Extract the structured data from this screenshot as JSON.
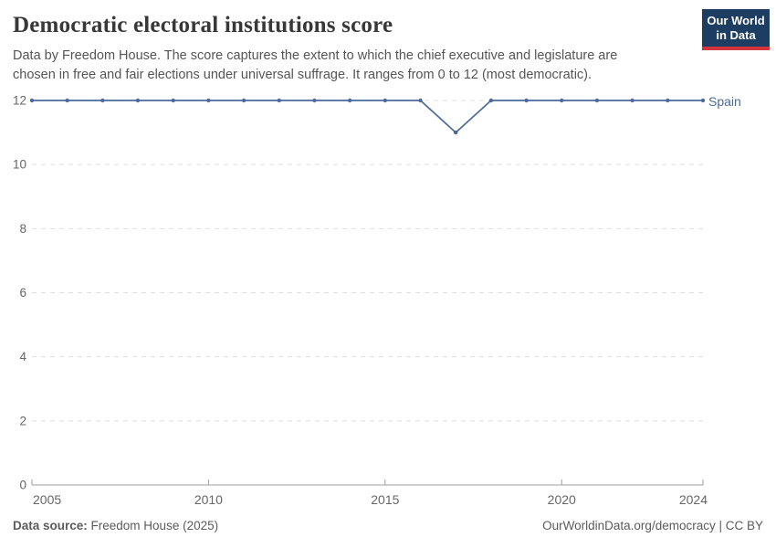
{
  "header": {
    "title": "Democratic electoral institutions score",
    "subtitle": "Data by Freedom House. The score captures the extent to which the chief executive and legislature are chosen in free and fair elections under universal suffrage. It ranges from 0 to 12 (most democratic).",
    "logo": {
      "line1": "Our World",
      "line2": "in Data",
      "bg_color": "#1d3d63",
      "accent_color": "#d4353c"
    }
  },
  "chart_data": {
    "type": "line",
    "title": "Democratic electoral institutions score",
    "subtitle": "Data by Freedom House. The score captures the extent to which the chief executive and legislature are chosen in free and fair elections under universal suffrage. It ranges from 0 to 12 (most democratic).",
    "x": [
      2005,
      2006,
      2007,
      2008,
      2009,
      2010,
      2011,
      2012,
      2013,
      2014,
      2015,
      2016,
      2017,
      2018,
      2019,
      2020,
      2021,
      2022,
      2023,
      2024
    ],
    "series": [
      {
        "name": "Spain",
        "color": "#4C6A9C",
        "values": [
          12,
          12,
          12,
          12,
          12,
          12,
          12,
          12,
          12,
          12,
          12,
          12,
          11,
          12,
          12,
          12,
          12,
          12,
          12,
          12
        ]
      }
    ],
    "xlabel": "",
    "ylabel": "",
    "ylim": [
      0,
      12
    ],
    "yticks": [
      0,
      2,
      4,
      6,
      8,
      10,
      12
    ],
    "xticks": [
      2005,
      2010,
      2015,
      2020,
      2024
    ],
    "grid": "dashed-horizontal",
    "legend_position": "line-end-label",
    "colors": {
      "gridline": "#dedede",
      "axis": "#9e9e9e",
      "tick_label": "#666666"
    }
  },
  "footer": {
    "datasource_label": "Data source:",
    "datasource_value": " Freedom House (2025)",
    "link": "OurWorldinData.org/democracy",
    "separator": " | ",
    "license": "CC BY"
  }
}
